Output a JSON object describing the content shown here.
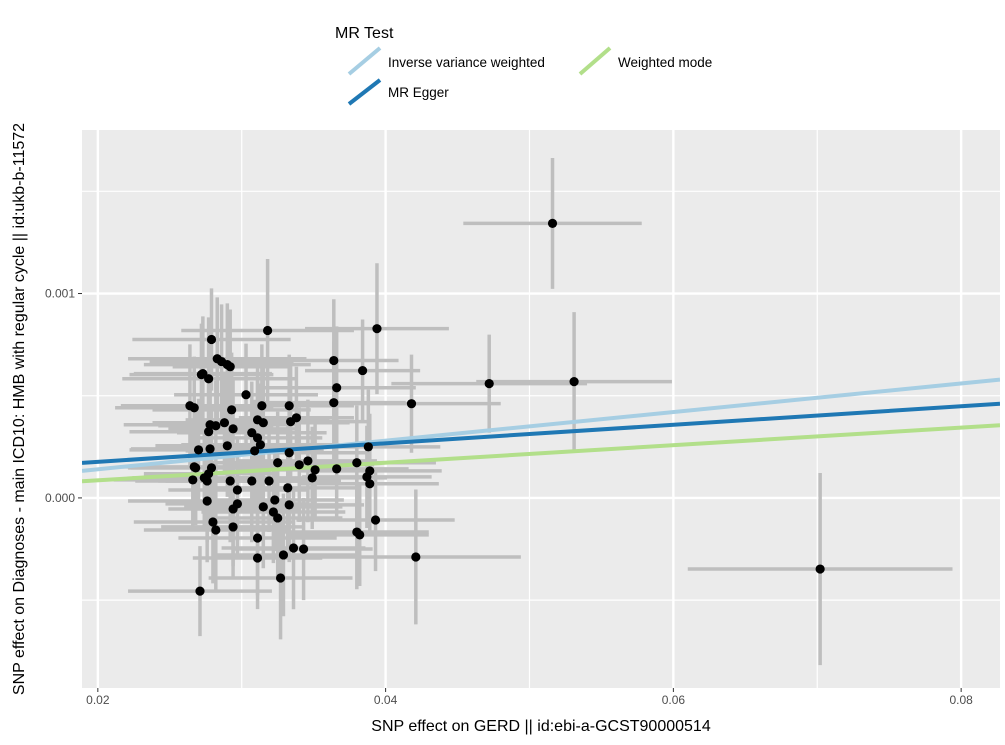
{
  "chart_data": {
    "type": "scatter",
    "xlabel": "SNP effect on GERD || id:ebi-a-GCST90000514",
    "ylabel": "SNP effect on Diagnoses - main ICD10: HMB with regular cycle || id:ukb-b-11572",
    "xlim": [
      0.0189,
      0.0827
    ],
    "ylim": [
      -0.00093,
      0.0018
    ],
    "xticks": [
      {
        "v": 0.02,
        "label": "0.02"
      },
      {
        "v": 0.04,
        "label": "0.04"
      },
      {
        "v": 0.06,
        "label": "0.06"
      },
      {
        "v": 0.08,
        "label": "0.08"
      }
    ],
    "yticks": [
      {
        "v": 0.0,
        "label": "0.000"
      },
      {
        "v": 0.001,
        "label": "0.001"
      }
    ],
    "minor_x": [
      0.03,
      0.05,
      0.07
    ],
    "minor_y": [
      -0.0005,
      0.0005,
      0.0015
    ],
    "grid": true,
    "legend": {
      "title": "MR Test",
      "position": "top",
      "entries": [
        {
          "label": "Inverse variance weighted",
          "color": "#a6cee3"
        },
        {
          "label": "MR Egger",
          "color": "#1f78b4"
        },
        {
          "label": "Weighted mode",
          "color": "#b2df8a"
        }
      ]
    },
    "lines": [
      {
        "name": "Inverse variance weighted",
        "intercept": 0.0,
        "slope": 0.007,
        "color": "#a6cee3"
      },
      {
        "name": "MR Egger",
        "intercept": 8.6e-05,
        "slope": 0.00453,
        "color": "#1f78b4"
      },
      {
        "name": "Weighted mode",
        "intercept": 0.0,
        "slope": 0.0043,
        "color": "#b2df8a"
      }
    ],
    "point_color": "#000000",
    "errorbar_color": "#bebebe",
    "points": [
      [
        0.0516,
        0.001343,
        0.0062,
        0.00032
      ],
      [
        0.0394,
        0.000828,
        0.005,
        0.00032
      ],
      [
        0.0318,
        0.000819,
        0.006,
        0.00035
      ],
      [
        0.0279,
        0.000775,
        0.0055,
        0.00025
      ],
      [
        0.0283,
        0.000681,
        0.0062,
        0.0003
      ],
      [
        0.0364,
        0.000672,
        0.0045,
        0.0003
      ],
      [
        0.0286,
        0.000667,
        0.005,
        0.00028
      ],
      [
        0.029,
        0.000652,
        0.0058,
        0.0003
      ],
      [
        0.0292,
        0.000642,
        0.004,
        0.00028
      ],
      [
        0.0272,
        0.000603,
        0.005,
        0.00025
      ],
      [
        0.0277,
        0.000583,
        0.006,
        0.0003
      ],
      [
        0.0384,
        0.000623,
        0.004,
        0.00025
      ],
      [
        0.0366,
        0.000539,
        0.0055,
        0.0003
      ],
      [
        0.0472,
        0.000559,
        0.0068,
        0.00024
      ],
      [
        0.0531,
        0.000569,
        0.0068,
        0.00034
      ],
      [
        0.0303,
        0.000505,
        0.005,
        0.00025
      ],
      [
        0.0418,
        0.000461,
        0.0062,
        0.00024
      ],
      [
        0.0264,
        0.000451,
        0.0048,
        0.0003
      ],
      [
        0.0267,
        0.000441,
        0.0055,
        0.00025
      ],
      [
        0.0314,
        0.000451,
        0.006,
        0.0003
      ],
      [
        0.0364,
        0.000466,
        0.005,
        0.0003
      ],
      [
        0.0333,
        0.000451,
        0.0045,
        0.00025
      ],
      [
        0.0293,
        0.000431,
        0.0055,
        0.00028
      ],
      [
        0.0288,
        0.000368,
        0.005,
        0.00025
      ],
      [
        0.0278,
        0.000358,
        0.006,
        0.0003
      ],
      [
        0.0294,
        0.000338,
        0.0045,
        0.00025
      ],
      [
        0.0277,
        0.000324,
        0.0055,
        0.0003
      ],
      [
        0.0282,
        0.000353,
        0.004,
        0.00022
      ],
      [
        0.0315,
        0.000368,
        0.006,
        0.0003
      ],
      [
        0.0307,
        0.000319,
        0.0052,
        0.00025
      ],
      [
        0.0311,
        0.000294,
        0.0045,
        0.00028
      ],
      [
        0.029,
        0.000255,
        0.005,
        0.00025
      ],
      [
        0.0313,
        0.00026,
        0.0055,
        0.0003
      ],
      [
        0.0309,
        0.00023,
        0.0048,
        0.00025
      ],
      [
        0.0334,
        0.000373,
        0.0055,
        0.0003
      ],
      [
        0.0338,
        0.000392,
        0.004,
        0.00025
      ],
      [
        0.0311,
        0.000382,
        0.005,
        0.00028
      ],
      [
        0.027,
        0.000235,
        0.0048,
        0.00025
      ],
      [
        0.0278,
        0.00024,
        0.0055,
        0.0003
      ],
      [
        0.0267,
        0.000152,
        0.005,
        0.00025
      ],
      [
        0.0268,
        0.000147,
        0.0045,
        0.00028
      ],
      [
        0.0279,
        0.000147,
        0.0058,
        0.0003
      ],
      [
        0.0266,
        8.8e-05,
        0.0055,
        0.00025
      ],
      [
        0.0276,
        8.3e-05,
        0.005,
        0.0003
      ],
      [
        0.0277,
        0.000118,
        0.0045,
        0.00025
      ],
      [
        0.0307,
        8.3e-05,
        0.006,
        0.0003
      ],
      [
        0.0319,
        8.3e-05,
        0.005,
        0.00025
      ],
      [
        0.0333,
        0.000221,
        0.0055,
        0.0003
      ],
      [
        0.0325,
        0.000172,
        0.0045,
        0.00025
      ],
      [
        0.034,
        0.000162,
        0.0052,
        0.00028
      ],
      [
        0.0351,
        0.000137,
        0.0055,
        0.00025
      ],
      [
        0.0346,
        0.000181,
        0.0048,
        0.0003
      ],
      [
        0.0366,
        0.000142,
        0.005,
        0.00025
      ],
      [
        0.038,
        0.000172,
        0.0055,
        0.00028
      ],
      [
        0.0292,
        8.3e-05,
        0.005,
        0.0003
      ],
      [
        0.0297,
        3.9e-05,
        0.0048,
        0.00025
      ],
      [
        0.0276,
        -1.5e-05,
        0.0055,
        0.0003
      ],
      [
        0.0297,
        -2.9e-05,
        0.005,
        0.00025
      ],
      [
        0.0294,
        -5.4e-05,
        0.0045,
        0.00028
      ],
      [
        0.028,
        -0.000118,
        0.0055,
        0.0003
      ],
      [
        0.0294,
        -0.000142,
        0.005,
        0.00025
      ],
      [
        0.0315,
        -4.4e-05,
        0.0055,
        0.0003
      ],
      [
        0.0323,
        -1e-05,
        0.0048,
        0.00025
      ],
      [
        0.0333,
        -3.4e-05,
        0.0052,
        0.00028
      ],
      [
        0.0322,
        -6.9e-05,
        0.005,
        0.00025
      ],
      [
        0.0325,
        -9.8e-05,
        0.0045,
        0.0003
      ],
      [
        0.0393,
        -0.000108,
        0.0055,
        0.00025
      ],
      [
        0.038,
        -0.000167,
        0.005,
        0.00028
      ],
      [
        0.0382,
        -0.000181,
        0.0048,
        0.00025
      ],
      [
        0.0282,
        -0.000157,
        0.005,
        0.0003
      ],
      [
        0.0311,
        -0.000196,
        0.0055,
        0.00028
      ],
      [
        0.0336,
        -0.000245,
        0.005,
        0.0003
      ],
      [
        0.0311,
        -0.000294,
        0.0045,
        0.00025
      ],
      [
        0.0329,
        -0.000279,
        0.005,
        0.0003
      ],
      [
        0.0343,
        -0.00025,
        0.0048,
        0.00025
      ],
      [
        0.0327,
        -0.000392,
        0.005,
        0.0003
      ],
      [
        0.0271,
        -0.000456,
        0.005,
        0.00022
      ],
      [
        0.0421,
        -0.000289,
        0.0073,
        0.00033
      ],
      [
        0.0702,
        -0.000348,
        0.0092,
        0.00047
      ],
      [
        0.0388,
        0.00025,
        0.005,
        0.00028
      ],
      [
        0.0387,
        0.000103,
        0.0045,
        0.00025
      ],
      [
        0.0389,
        0.000132,
        0.005,
        0.00028
      ],
      [
        0.0389,
        6.9e-05,
        0.0048,
        0.00025
      ],
      [
        0.0332,
        4.9e-05,
        0.005,
        0.0003
      ],
      [
        0.0349,
        9.8e-05,
        0.0052,
        0.00025
      ],
      [
        0.0273,
        0.000608,
        0.0048,
        0.00028
      ],
      [
        0.0274,
        9.8e-05,
        0.005,
        0.00025
      ]
    ]
  }
}
